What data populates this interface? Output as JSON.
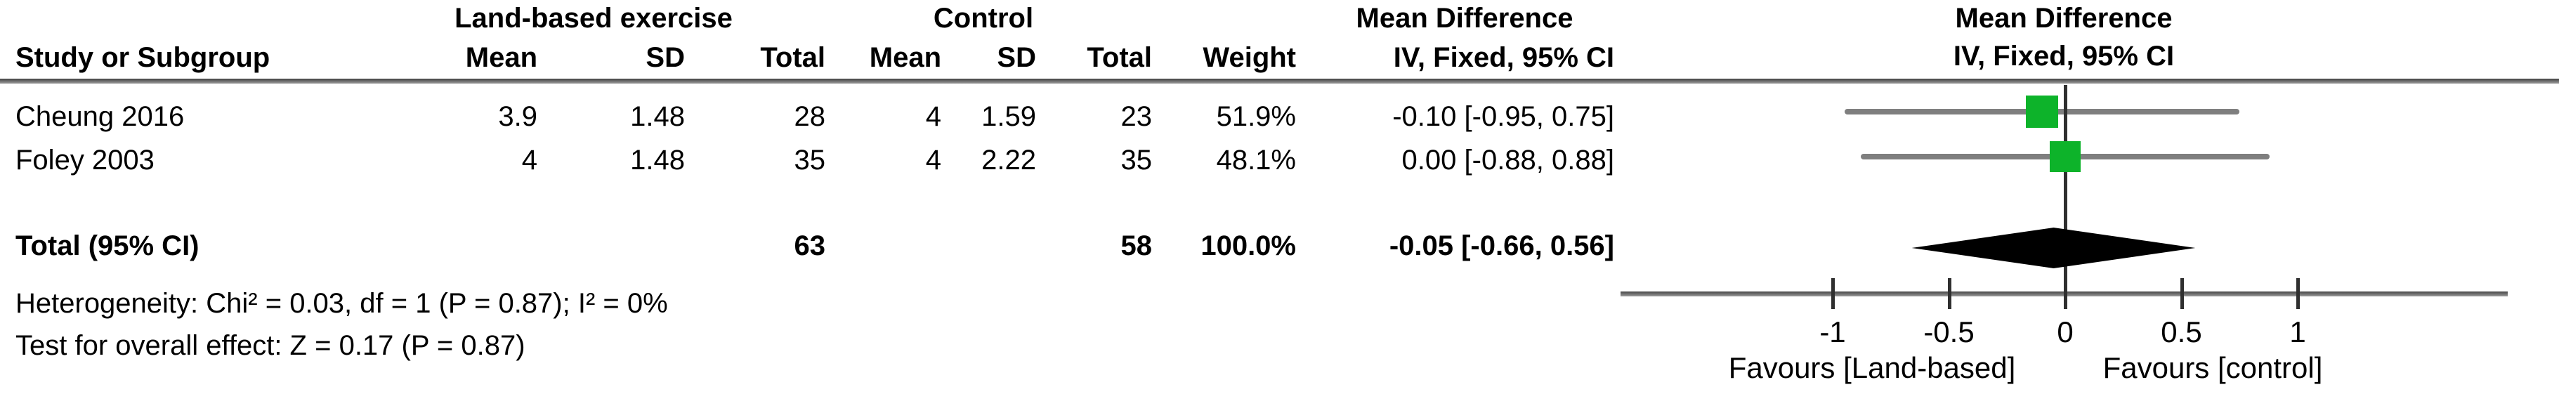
{
  "header": {
    "group_experimental": "Land-based exercise",
    "group_control": "Control",
    "group_effect": "Mean Difference",
    "group_effect_plot": "Mean Difference",
    "col_study": "Study or Subgroup",
    "col_mean_exp": "Mean",
    "col_sd_exp": "SD",
    "col_total_exp": "Total",
    "col_mean_ctrl": "Mean",
    "col_sd_ctrl": "SD",
    "col_total_ctrl": "Total",
    "col_weight": "Weight",
    "col_effect_ci": "IV, Fixed, 95% CI",
    "col_effect_ci_plot": "IV, Fixed, 95% CI"
  },
  "rows": [
    {
      "study": "Cheung 2016",
      "mean_exp": "3.9",
      "sd_exp": "1.48",
      "total_exp": "28",
      "mean_ctrl": "4",
      "sd_ctrl": "1.59",
      "total_ctrl": "23",
      "weight": "51.9%",
      "effect": "-0.10 [-0.95, 0.75]"
    },
    {
      "study": "Foley 2003",
      "mean_exp": "4",
      "sd_exp": "1.48",
      "total_exp": "35",
      "mean_ctrl": "4",
      "sd_ctrl": "2.22",
      "total_ctrl": "35",
      "weight": "48.1%",
      "effect": "0.00 [-0.88, 0.88]"
    }
  ],
  "total": {
    "label": "Total (95% CI)",
    "total_exp": "63",
    "total_ctrl": "58",
    "weight": "100.0%",
    "effect": "-0.05 [-0.66, 0.56]"
  },
  "footnotes": {
    "heterogeneity": "Heterogeneity: Chi² = 0.03, df = 1 (P = 0.87); I² = 0%",
    "overall_effect": "Test for overall effect: Z = 0.17 (P = 0.87)"
  },
  "chart_data": {
    "type": "forest",
    "title": "Mean Difference",
    "subtitle": "IV, Fixed, 95% CI",
    "effect_measure": "Mean Difference, IV, Fixed, 95% CI",
    "studies": [
      {
        "name": "Cheung 2016",
        "md": -0.1,
        "ci_low": -0.95,
        "ci_high": 0.75,
        "weight_pct": 51.9
      },
      {
        "name": "Foley 2003",
        "md": 0.0,
        "ci_low": -0.88,
        "ci_high": 0.88,
        "weight_pct": 48.1
      }
    ],
    "pooled": {
      "md": -0.05,
      "ci_low": -0.66,
      "ci_high": 0.56
    },
    "axis": {
      "ticks": [
        -1,
        -0.5,
        0,
        0.5,
        1
      ],
      "tick_labels": [
        "-1",
        "-0.5",
        "0",
        "0.5",
        "1"
      ],
      "xlim": [
        -1.92,
        1.9
      ]
    },
    "favours_left": "Favours [Land-based]",
    "favours_right": "Favours [control]",
    "marker_color": "#0db32a",
    "diamond_color": "#000000",
    "ci_line_color": "#7f7f7f",
    "axis_color": "#2f2f2f"
  }
}
